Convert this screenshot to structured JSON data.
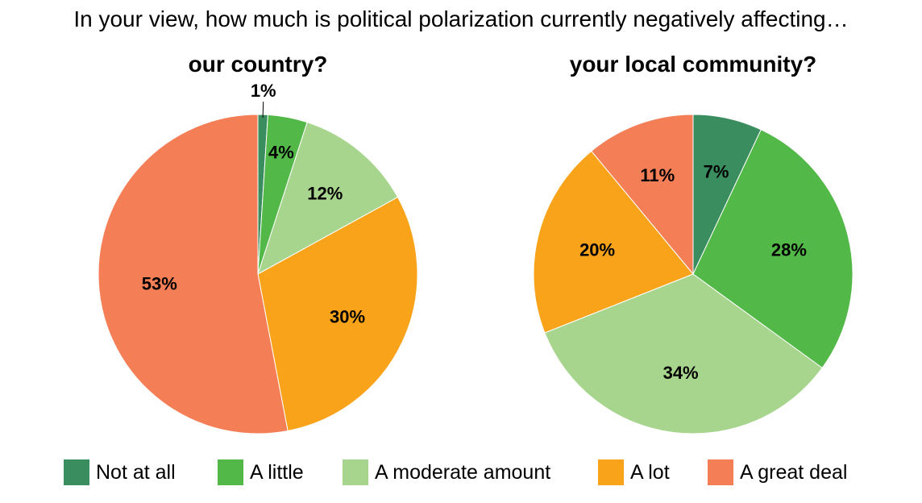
{
  "title": "In your view, how much is political polarization currently negatively affecting…",
  "categories": [
    "Not at all",
    "A little",
    "A moderate amount",
    "A lot",
    "A great deal"
  ],
  "colors": {
    "not_at_all": "#3a8d5f",
    "a_little": "#52b848",
    "a_moderate_amount": "#a8d58e",
    "a_lot": "#f9a31b",
    "a_great_deal": "#f47e55"
  },
  "chart_data": [
    {
      "type": "pie",
      "title": "our country?",
      "categories": [
        "Not at all",
        "A little",
        "A moderate amount",
        "A lot",
        "A great deal"
      ],
      "values": [
        1,
        4,
        12,
        30,
        53
      ],
      "labels": [
        "1%",
        "4%",
        "12%",
        "30%",
        "53%"
      ],
      "start": "12 o'clock",
      "direction": "clockwise"
    },
    {
      "type": "pie",
      "title": "your local community?",
      "categories": [
        "Not at all",
        "A little",
        "A moderate amount",
        "A lot",
        "A great deal"
      ],
      "values": [
        7,
        28,
        34,
        20,
        11
      ],
      "labels": [
        "7%",
        "28%",
        "34%",
        "20%",
        "11%"
      ],
      "start": "12 o'clock",
      "direction": "clockwise"
    }
  ],
  "legend": {
    "placement": "bottom",
    "items": [
      "Not at all",
      "A little",
      "A moderate amount",
      "A lot",
      "A great deal"
    ]
  }
}
